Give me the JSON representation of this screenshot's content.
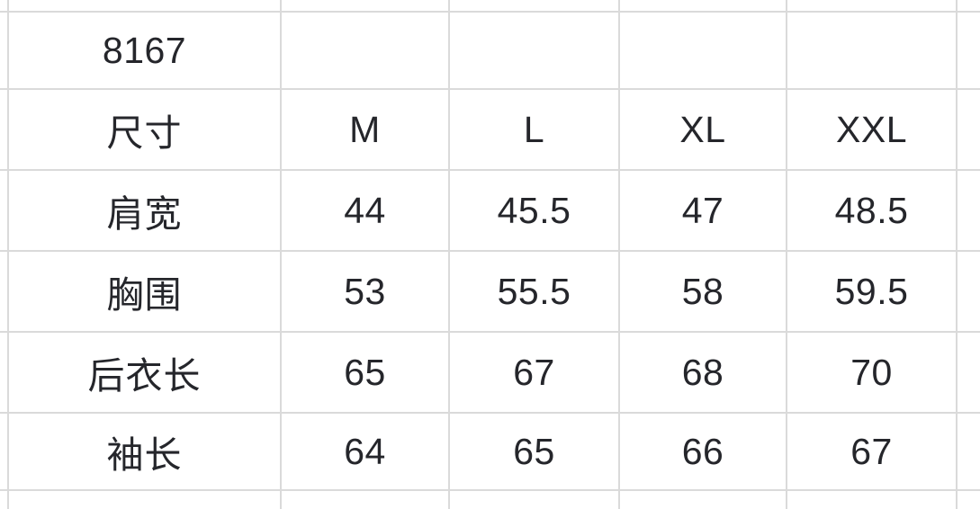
{
  "colors": {
    "background": "#ffffff",
    "gridline": "#dadada",
    "text": "#25262b"
  },
  "size_chart": {
    "style_code": "8167",
    "header": {
      "label": "尺寸",
      "sizes": [
        "M",
        "L",
        "XL",
        "XXL"
      ]
    },
    "measurements": [
      {
        "label": "肩宽",
        "values": [
          "44",
          "45.5",
          "47",
          "48.5"
        ]
      },
      {
        "label": "胸围",
        "values": [
          "53",
          "55.5",
          "58",
          "59.5"
        ]
      },
      {
        "label": "后衣长",
        "values": [
          "65",
          "67",
          "68",
          "70"
        ]
      },
      {
        "label": "袖长",
        "values": [
          "64",
          "65",
          "66",
          "67"
        ]
      }
    ]
  },
  "chart_data": {
    "type": "table",
    "title": "8167",
    "columns": [
      "尺寸",
      "M",
      "L",
      "XL",
      "XXL"
    ],
    "rows": [
      [
        "肩宽",
        44,
        45.5,
        47,
        48.5
      ],
      [
        "胸围",
        53,
        55.5,
        58,
        59.5
      ],
      [
        "后衣长",
        65,
        67,
        68,
        70
      ],
      [
        "袖长",
        64,
        65,
        66,
        67
      ]
    ]
  }
}
